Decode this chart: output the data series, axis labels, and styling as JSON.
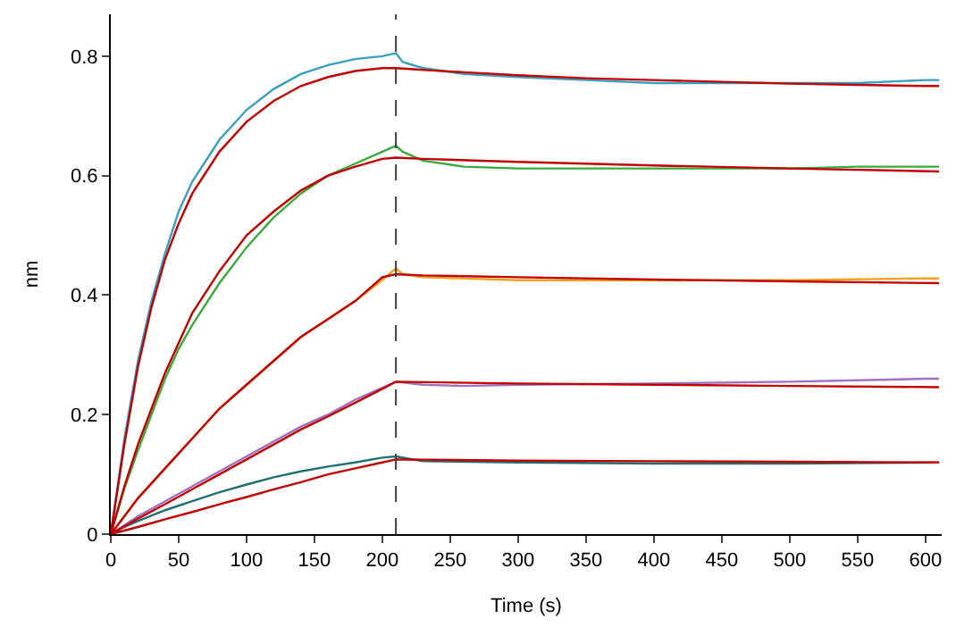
{
  "chart_data": {
    "type": "line",
    "xlabel": "Time (s)",
    "ylabel": "nm",
    "xlim": [
      0,
      612
    ],
    "ylim": [
      0,
      0.87
    ],
    "xticks": [
      0,
      50,
      100,
      150,
      200,
      250,
      300,
      350,
      400,
      450,
      500,
      550,
      600
    ],
    "yticks": [
      0,
      0.2,
      0.4,
      0.6,
      0.8
    ],
    "marker": "none",
    "line_style": "solid",
    "ref_lines": [
      {
        "axis": "x",
        "value": 210,
        "color": "#404040",
        "line_style": "dashed"
      }
    ],
    "series": [
      {
        "color": "#3a9fbf",
        "x": [
          0,
          10,
          20,
          30,
          40,
          50,
          60,
          80,
          100,
          120,
          140,
          160,
          180,
          200,
          210,
          215,
          230,
          260,
          300,
          350,
          400,
          450,
          500,
          550,
          600,
          610
        ],
        "values": [
          0,
          0.16,
          0.29,
          0.39,
          0.47,
          0.54,
          0.59,
          0.66,
          0.71,
          0.745,
          0.77,
          0.785,
          0.795,
          0.8,
          0.805,
          0.79,
          0.78,
          0.77,
          0.765,
          0.76,
          0.755,
          0.755,
          0.755,
          0.755,
          0.76,
          0.76
        ]
      },
      {
        "color": "#3aaa3a",
        "x": [
          0,
          10,
          20,
          30,
          40,
          50,
          60,
          80,
          100,
          120,
          140,
          160,
          180,
          200,
          210,
          215,
          230,
          260,
          300,
          350,
          400,
          450,
          500,
          550,
          600,
          610
        ],
        "values": [
          0,
          0.076,
          0.14,
          0.2,
          0.26,
          0.31,
          0.35,
          0.42,
          0.48,
          0.53,
          0.57,
          0.6,
          0.62,
          0.64,
          0.65,
          0.64,
          0.625,
          0.615,
          0.612,
          0.612,
          0.612,
          0.612,
          0.612,
          0.615,
          0.615,
          0.615
        ]
      },
      {
        "color": "#f0a020",
        "x": [
          0,
          10,
          20,
          30,
          40,
          50,
          60,
          80,
          100,
          120,
          140,
          160,
          180,
          200,
          210,
          215,
          230,
          300,
          400,
          500,
          600,
          610
        ],
        "values": [
          0,
          0.03,
          0.06,
          0.085,
          0.11,
          0.135,
          0.16,
          0.21,
          0.25,
          0.29,
          0.33,
          0.36,
          0.39,
          0.425,
          0.445,
          0.435,
          0.43,
          0.425,
          0.425,
          0.425,
          0.428,
          0.428
        ]
      },
      {
        "color": "#a070c0",
        "x": [
          0,
          10,
          20,
          40,
          60,
          80,
          100,
          120,
          140,
          160,
          180,
          200,
          210,
          230,
          260,
          300,
          400,
          500,
          600,
          610
        ],
        "values": [
          0,
          0.015,
          0.03,
          0.055,
          0.08,
          0.105,
          0.13,
          0.155,
          0.18,
          0.2,
          0.225,
          0.245,
          0.255,
          0.25,
          0.248,
          0.25,
          0.252,
          0.255,
          0.26,
          0.26
        ]
      },
      {
        "color": "#207070",
        "x": [
          0,
          10,
          20,
          40,
          60,
          80,
          100,
          120,
          140,
          160,
          180,
          200,
          210,
          230,
          300,
          400,
          500,
          610
        ],
        "values": [
          0,
          0.012,
          0.022,
          0.04,
          0.055,
          0.07,
          0.083,
          0.095,
          0.105,
          0.113,
          0.12,
          0.128,
          0.13,
          0.122,
          0.12,
          0.118,
          0.118,
          0.12
        ]
      },
      {
        "color": "#c00000",
        "x": [
          0,
          10,
          20,
          30,
          40,
          50,
          60,
          80,
          100,
          120,
          140,
          160,
          180,
          200,
          210,
          230,
          260,
          300,
          350,
          400,
          450,
          500,
          550,
          600,
          610
        ],
        "values": [
          0,
          0.15,
          0.28,
          0.38,
          0.46,
          0.52,
          0.57,
          0.64,
          0.69,
          0.725,
          0.75,
          0.765,
          0.775,
          0.78,
          0.78,
          0.777,
          0.773,
          0.768,
          0.763,
          0.76,
          0.757,
          0.754,
          0.752,
          0.75,
          0.75
        ]
      },
      {
        "color": "#c00000",
        "x": [
          0,
          10,
          20,
          30,
          40,
          50,
          60,
          80,
          100,
          120,
          140,
          160,
          180,
          200,
          210,
          230,
          300,
          400,
          500,
          610
        ],
        "values": [
          0,
          0.08,
          0.15,
          0.21,
          0.27,
          0.32,
          0.37,
          0.44,
          0.5,
          0.54,
          0.575,
          0.6,
          0.615,
          0.628,
          0.63,
          0.628,
          0.623,
          0.617,
          0.612,
          0.607
        ]
      },
      {
        "color": "#c00000",
        "x": [
          0,
          10,
          20,
          30,
          40,
          50,
          60,
          80,
          100,
          120,
          140,
          160,
          180,
          200,
          210,
          230,
          300,
          400,
          500,
          610
        ],
        "values": [
          0,
          0.03,
          0.06,
          0.085,
          0.11,
          0.135,
          0.16,
          0.21,
          0.25,
          0.29,
          0.33,
          0.36,
          0.39,
          0.43,
          0.435,
          0.433,
          0.43,
          0.426,
          0.423,
          0.42
        ]
      },
      {
        "color": "#c00000",
        "x": [
          0,
          10,
          20,
          40,
          60,
          80,
          100,
          120,
          140,
          160,
          180,
          200,
          210,
          300,
          400,
          500,
          610
        ],
        "values": [
          0,
          0.013,
          0.026,
          0.05,
          0.075,
          0.1,
          0.125,
          0.15,
          0.175,
          0.197,
          0.22,
          0.243,
          0.255,
          0.252,
          0.25,
          0.248,
          0.246
        ]
      },
      {
        "color": "#c00000",
        "x": [
          0,
          10,
          20,
          40,
          60,
          80,
          100,
          120,
          140,
          160,
          180,
          200,
          210,
          300,
          400,
          500,
          610
        ],
        "values": [
          0,
          0.006,
          0.012,
          0.025,
          0.037,
          0.05,
          0.062,
          0.075,
          0.087,
          0.1,
          0.11,
          0.12,
          0.125,
          0.123,
          0.122,
          0.121,
          0.12
        ]
      }
    ]
  }
}
